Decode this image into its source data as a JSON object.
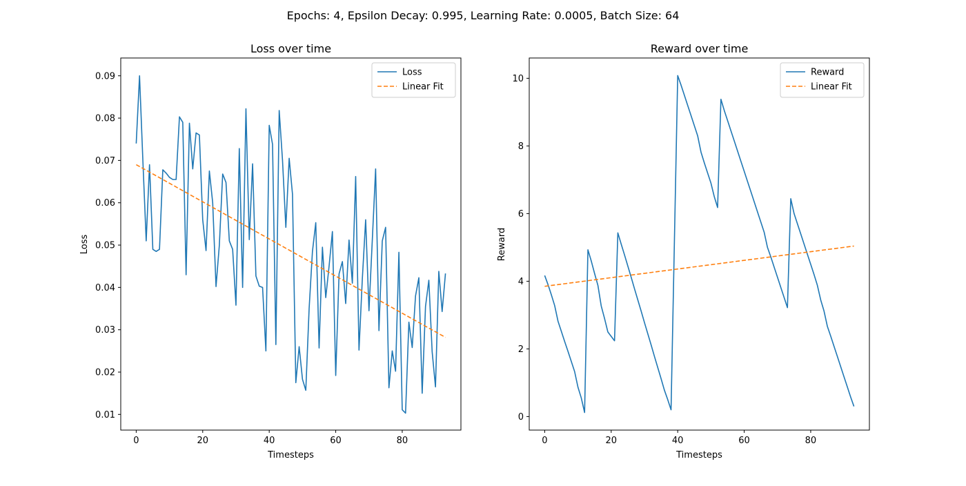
{
  "figure_title": "Epochs: 4, Epsilon Decay: 0.995, Learning Rate: 0.0005, Batch Size: 64",
  "colors": {
    "series": "#1f77b4",
    "fit": "#ff7f0e",
    "axis": "#000000"
  },
  "chart_data": [
    {
      "type": "line",
      "title": "Loss over time",
      "xlabel": "Timesteps",
      "ylabel": "Loss",
      "xlim": [
        -4.65,
        97.65
      ],
      "ylim": [
        0.0063,
        0.0942
      ],
      "xticks": [
        0,
        20,
        40,
        60,
        80
      ],
      "yticks": [
        0.01,
        0.02,
        0.03,
        0.04,
        0.05,
        0.06,
        0.07,
        0.08,
        0.09
      ],
      "ytick_labels": [
        "0.01",
        "0.02",
        "0.03",
        "0.04",
        "0.05",
        "0.06",
        "0.07",
        "0.08",
        "0.09"
      ],
      "legend_position": "top-right",
      "grid": false,
      "series": [
        {
          "name": "Loss",
          "style": "solid",
          "x": [
            0,
            1,
            2,
            3,
            4,
            5,
            6,
            7,
            8,
            9,
            10,
            11,
            12,
            13,
            14,
            15,
            16,
            17,
            18,
            19,
            20,
            21,
            22,
            23,
            24,
            25,
            26,
            27,
            28,
            29,
            30,
            31,
            32,
            33,
            34,
            35,
            36,
            37,
            38,
            39,
            40,
            41,
            42,
            43,
            44,
            45,
            46,
            47,
            48,
            49,
            50,
            51,
            52,
            53,
            54,
            55,
            56,
            57,
            58,
            59,
            60,
            61,
            62,
            63,
            64,
            65,
            66,
            67,
            68,
            69,
            70,
            71,
            72,
            73,
            74,
            75,
            76,
            77,
            78,
            79,
            80,
            81,
            82,
            83,
            84,
            85,
            86,
            87,
            88,
            89,
            90,
            91,
            92,
            93
          ],
          "values": [
            0.074,
            0.09,
            0.07,
            0.051,
            0.069,
            0.049,
            0.0485,
            0.049,
            0.0678,
            0.067,
            0.066,
            0.0655,
            0.0655,
            0.0803,
            0.079,
            0.043,
            0.0788,
            0.068,
            0.0765,
            0.076,
            0.056,
            0.0487,
            0.0675,
            0.06,
            0.0402,
            0.05,
            0.0668,
            0.0648,
            0.051,
            0.049,
            0.0358,
            0.0728,
            0.04,
            0.0822,
            0.0513,
            0.0692,
            0.0427,
            0.0403,
            0.04,
            0.025,
            0.0783,
            0.0738,
            0.0265,
            0.0818,
            0.07,
            0.0542,
            0.0705,
            0.062,
            0.0175,
            0.026,
            0.0183,
            0.0157,
            0.035,
            0.0485,
            0.0553,
            0.0257,
            0.0495,
            0.0376,
            0.045,
            0.0532,
            0.0192,
            0.0432,
            0.0461,
            0.0362,
            0.0512,
            0.041,
            0.0662,
            0.0252,
            0.042,
            0.056,
            0.0345,
            0.0512,
            0.068,
            0.0298,
            0.051,
            0.0542,
            0.0163,
            0.025,
            0.0202,
            0.0483,
            0.0111,
            0.0103,
            0.0318,
            0.0258,
            0.038,
            0.0423,
            0.015,
            0.0355,
            0.0417,
            0.0248,
            0.0165,
            0.0438,
            0.0343,
            0.0433
          ]
        },
        {
          "name": "Linear Fit",
          "style": "dashed",
          "x": [
            0,
            93
          ],
          "values": [
            0.069,
            0.0282
          ]
        }
      ]
    },
    {
      "type": "line",
      "title": "Reward over time",
      "xlabel": "Timesteps",
      "ylabel": "Reward",
      "xlim": [
        -4.65,
        97.65
      ],
      "ylim": [
        -0.4,
        10.6
      ],
      "xticks": [
        0,
        20,
        40,
        60,
        80
      ],
      "yticks": [
        0,
        2,
        4,
        6,
        8,
        10
      ],
      "ytick_labels": [
        "0",
        "2",
        "4",
        "6",
        "8",
        "10"
      ],
      "legend_position": "top-right",
      "grid": false,
      "series": [
        {
          "name": "Reward",
          "style": "solid",
          "x": [
            0,
            1,
            2,
            3,
            4,
            5,
            6,
            7,
            8,
            9,
            10,
            11,
            12,
            13,
            14,
            15,
            16,
            17,
            18,
            19,
            20,
            21,
            22,
            23,
            24,
            25,
            26,
            27,
            28,
            29,
            30,
            31,
            32,
            33,
            34,
            35,
            36,
            37,
            38,
            39,
            40,
            41,
            42,
            43,
            44,
            45,
            46,
            47,
            48,
            49,
            50,
            51,
            52,
            53,
            54,
            55,
            56,
            57,
            58,
            59,
            60,
            61,
            62,
            63,
            64,
            65,
            66,
            67,
            68,
            69,
            70,
            71,
            72,
            73,
            74,
            75,
            76,
            77,
            78,
            79,
            80,
            81,
            82,
            83,
            84,
            85,
            86,
            87,
            88,
            89,
            90,
            91,
            92,
            93
          ],
          "values": [
            4.17,
            3.9,
            3.6,
            3.28,
            2.82,
            2.52,
            2.22,
            1.93,
            1.63,
            1.33,
            0.87,
            0.55,
            0.12,
            4.93,
            4.6,
            4.23,
            3.88,
            3.27,
            2.9,
            2.5,
            2.24,
            5.43,
            5.1,
            4.78,
            4.45,
            4.12,
            3.78,
            3.45,
            3.12,
            2.78,
            2.45,
            2.12,
            1.78,
            1.45,
            1.12,
            0.78,
            0.5,
            0.2,
            10.08,
            9.8,
            9.5,
            9.2,
            8.9,
            8.6,
            8.3,
            7.82,
            7.5,
            7.2,
            6.9,
            6.5,
            6.18,
            9.38,
            9.05,
            8.75,
            8.45,
            8.15,
            7.85,
            7.55,
            7.25,
            6.95,
            6.65,
            6.35,
            6.05,
            5.75,
            5.45,
            5.0,
            4.72,
            4.42,
            4.12,
            3.82,
            3.52,
            3.22,
            6.44,
            6.0,
            5.7,
            5.4,
            5.1,
            4.8,
            4.5,
            4.2,
            3.88,
            3.45,
            3.12,
            2.67,
            2.38,
            2.08,
            1.78,
            1.48,
            1.18,
            0.88,
            0.58,
            0.3,
            0.3,
            0.3
          ],
          "x_override": [
            0,
            1,
            2,
            3,
            4,
            5,
            6,
            7,
            8,
            9,
            10,
            11,
            12,
            13,
            14,
            15,
            16,
            17,
            18,
            19,
            21,
            22,
            23,
            24,
            25,
            26,
            27,
            28,
            29,
            30,
            31,
            32,
            33,
            34,
            35,
            36,
            37,
            38,
            40,
            41,
            42,
            43,
            44,
            45,
            46,
            47,
            48,
            49,
            50,
            51,
            52,
            53,
            54,
            55,
            56,
            57,
            58,
            59,
            60,
            61,
            62,
            63,
            64,
            65,
            66,
            67,
            68,
            69,
            70,
            71,
            72,
            73,
            74,
            75,
            76,
            77,
            78,
            79,
            80,
            81,
            82,
            83,
            84,
            85,
            86,
            87,
            88,
            89,
            90,
            91,
            92,
            93,
            93,
            93
          ]
        },
        {
          "name": "Linear Fit",
          "style": "dashed",
          "x": [
            0,
            93
          ],
          "values": [
            3.85,
            5.04
          ]
        }
      ]
    }
  ]
}
